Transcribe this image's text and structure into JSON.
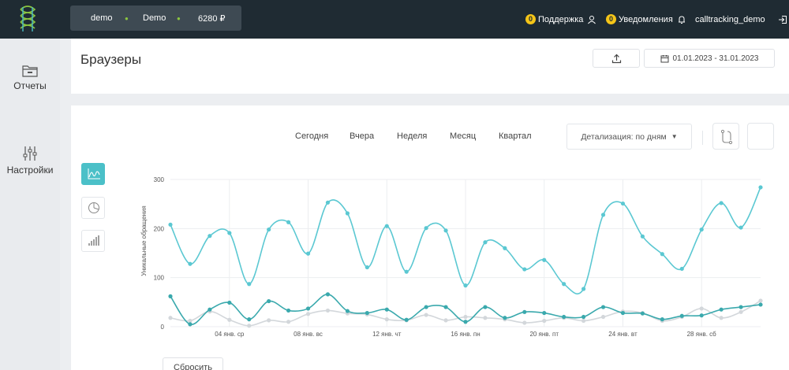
{
  "topbar": {
    "account_login": "demo",
    "account_name": "Demo",
    "balance": "6280 ₽",
    "support_count": "0",
    "support_label": "Поддержка",
    "notifications_count": "0",
    "notifications_label": "Уведомления",
    "username": "calltracking_demo"
  },
  "sidebar": {
    "items": [
      {
        "label": "Отчеты",
        "icon": "folder-icon"
      },
      {
        "label": "Настройки",
        "icon": "sliders-icon"
      }
    ]
  },
  "header": {
    "title": "Браузеры",
    "date_range": "01.01.2023 - 31.01.2023"
  },
  "toolbar": {
    "periods": [
      "Сегодня",
      "Вчера",
      "Неделя",
      "Месяц",
      "Квартал"
    ],
    "detail_label": "Детализация: по дням",
    "reset_label": "Сбросить"
  },
  "colors": {
    "accent": "#4bc0c8",
    "series_main": "#5bc8d2",
    "series_second": "#3aa9ad",
    "series_third": "#d3d7db",
    "topbar": "#1f2b33"
  },
  "chart_data": {
    "type": "line",
    "ylabel": "Уникальные обращения",
    "ylim": [
      0,
      300
    ],
    "yticks": [
      0,
      100,
      200,
      300
    ],
    "x": [
      "01.01",
      "02.01",
      "03.01",
      "04.01",
      "05.01",
      "06.01",
      "07.01",
      "08.01",
      "09.01",
      "10.01",
      "11.01",
      "12.01",
      "13.01",
      "14.01",
      "15.01",
      "16.01",
      "17.01",
      "18.01",
      "19.01",
      "20.01",
      "21.01",
      "22.01",
      "23.01",
      "24.01",
      "25.01",
      "26.01",
      "27.01",
      "28.01",
      "29.01",
      "30.01",
      "31.01"
    ],
    "xtick_labels": [
      {
        "index": 3,
        "label": "04 янв. ср"
      },
      {
        "index": 7,
        "label": "08 янв. вс"
      },
      {
        "index": 11,
        "label": "12 янв. чт"
      },
      {
        "index": 15,
        "label": "16 янв. пн"
      },
      {
        "index": 19,
        "label": "20 янв. пт"
      },
      {
        "index": 23,
        "label": "24 янв. вт"
      },
      {
        "index": 27,
        "label": "28 янв. сб"
      }
    ],
    "series": [
      {
        "color": "#5bc8d2",
        "values": [
          208,
          128,
          185,
          191,
          87,
          198,
          213,
          149,
          253,
          231,
          121,
          205,
          112,
          201,
          196,
          84,
          172,
          160,
          117,
          136,
          87,
          77,
          228,
          251,
          184,
          148,
          118,
          198,
          252,
          202,
          284
        ]
      },
      {
        "color": "#3aa9ad",
        "values": [
          62,
          5,
          35,
          49,
          15,
          52,
          33,
          37,
          66,
          32,
          28,
          35,
          14,
          40,
          40,
          10,
          40,
          18,
          30,
          28,
          20,
          20,
          40,
          28,
          27,
          15,
          22,
          23,
          35,
          40,
          45
        ]
      },
      {
        "color": "#d3d7db",
        "values": [
          18,
          12,
          31,
          14,
          2,
          13,
          10,
          26,
          33,
          27,
          25,
          15,
          13,
          24,
          13,
          20,
          18,
          15,
          8,
          12,
          18,
          12,
          20,
          31,
          28,
          12,
          20,
          37,
          18,
          30,
          53
        ]
      }
    ],
    "grid": true,
    "legend": "none"
  }
}
